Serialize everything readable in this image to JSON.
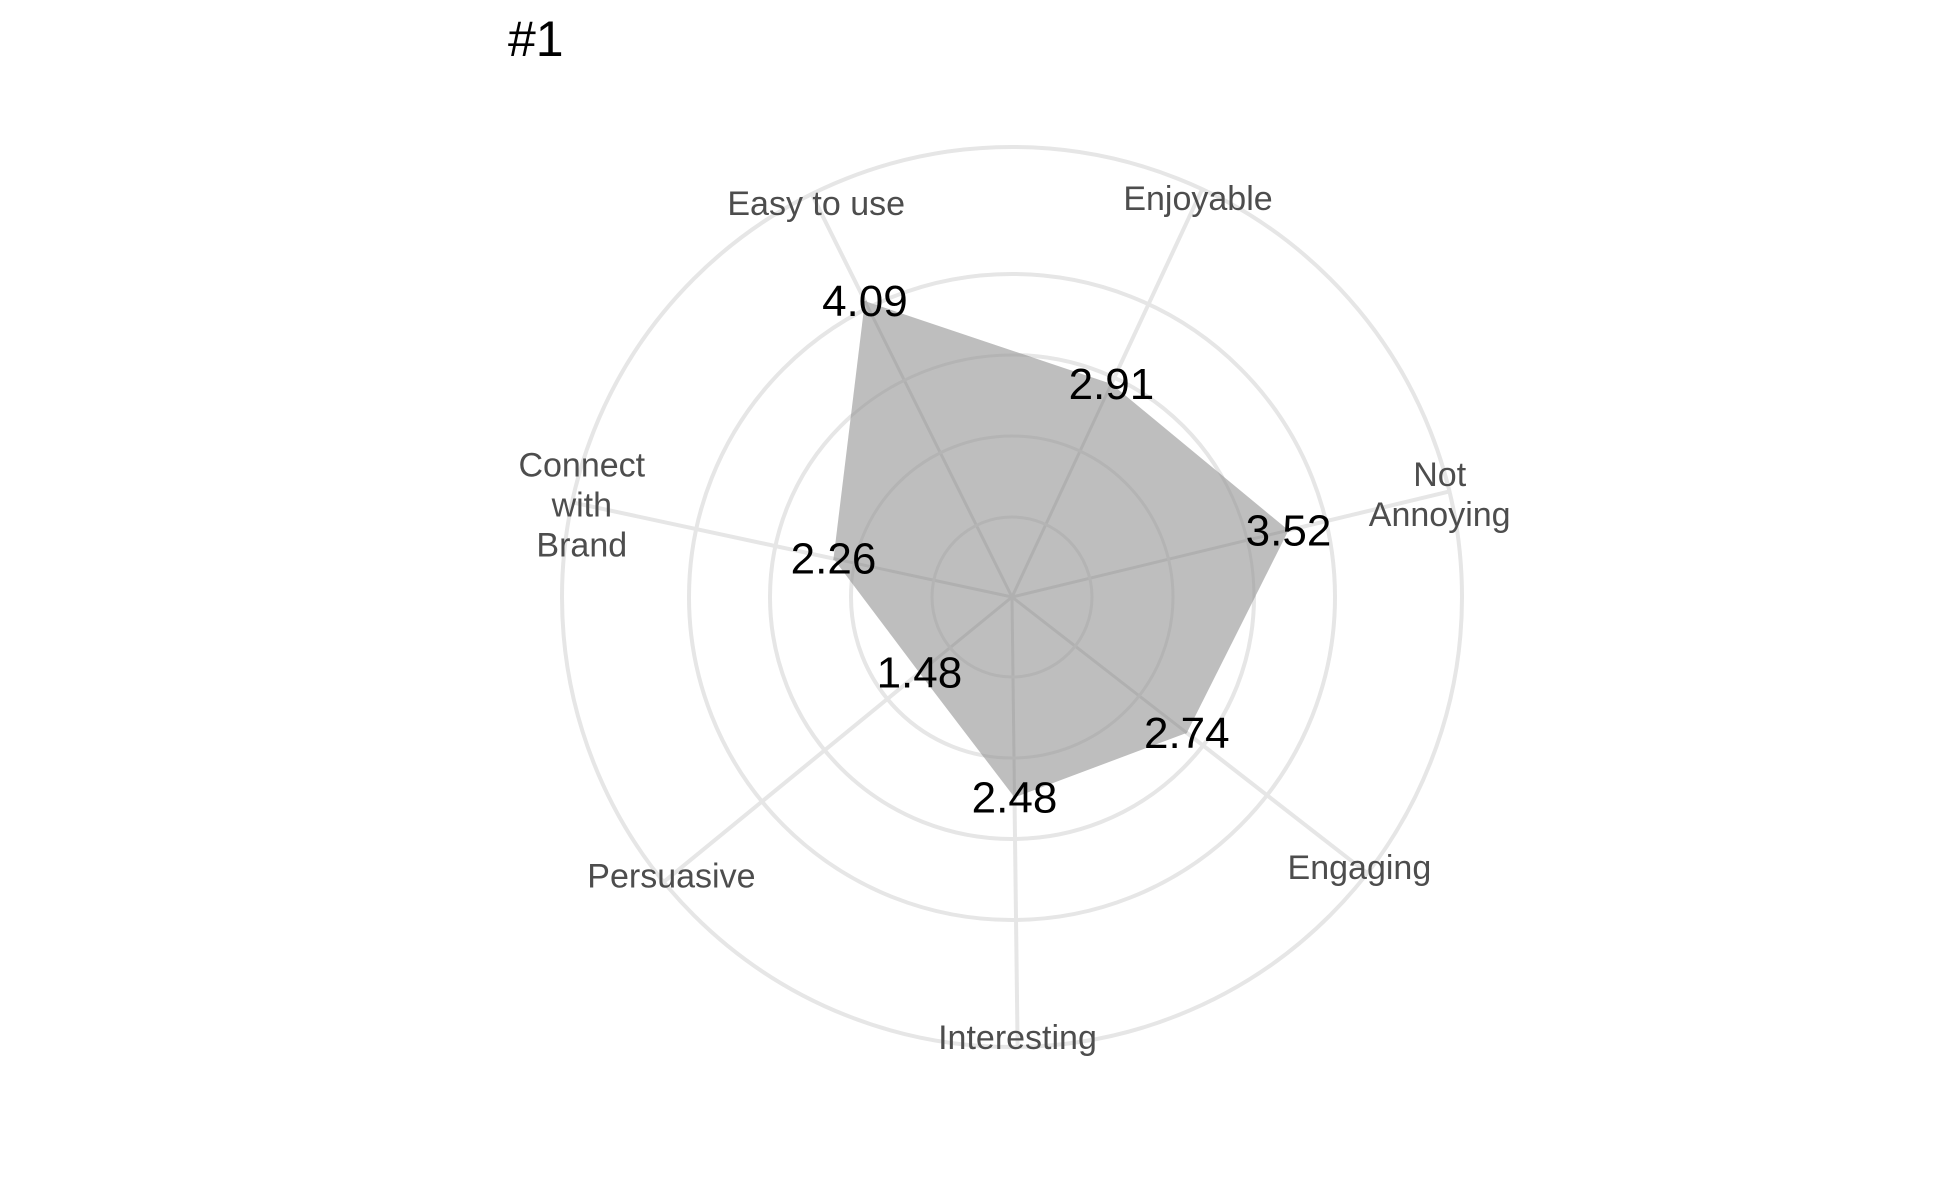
{
  "chart_data": {
    "type": "radar",
    "title": "#1",
    "categories": [
      "Enjoyable",
      "Not Annoying",
      "Engaging",
      "Interesting",
      "Persuasive",
      "Connect with Brand",
      "Easy to use"
    ],
    "category_lines": [
      [
        "Enjoyable"
      ],
      [
        "Not",
        "Annoying"
      ],
      [
        "Engaging"
      ],
      [
        "Interesting"
      ],
      [
        "Persuasive"
      ],
      [
        "Connect",
        "with",
        "Brand"
      ],
      [
        "Easy to use"
      ]
    ],
    "values": [
      2.91,
      3.52,
      2.74,
      2.48,
      1.48,
      2.26,
      4.09
    ],
    "value_labels": [
      "2.91",
      "3.52",
      "2.74",
      "2.48",
      "1.48",
      "2.26",
      "4.09"
    ],
    "rlim": [
      0,
      5
    ],
    "grid_rings": [
      1,
      2,
      3,
      4,
      5
    ],
    "grid": true,
    "fill_color": "#bebebe",
    "grid_color": "#e6e6e6"
  }
}
